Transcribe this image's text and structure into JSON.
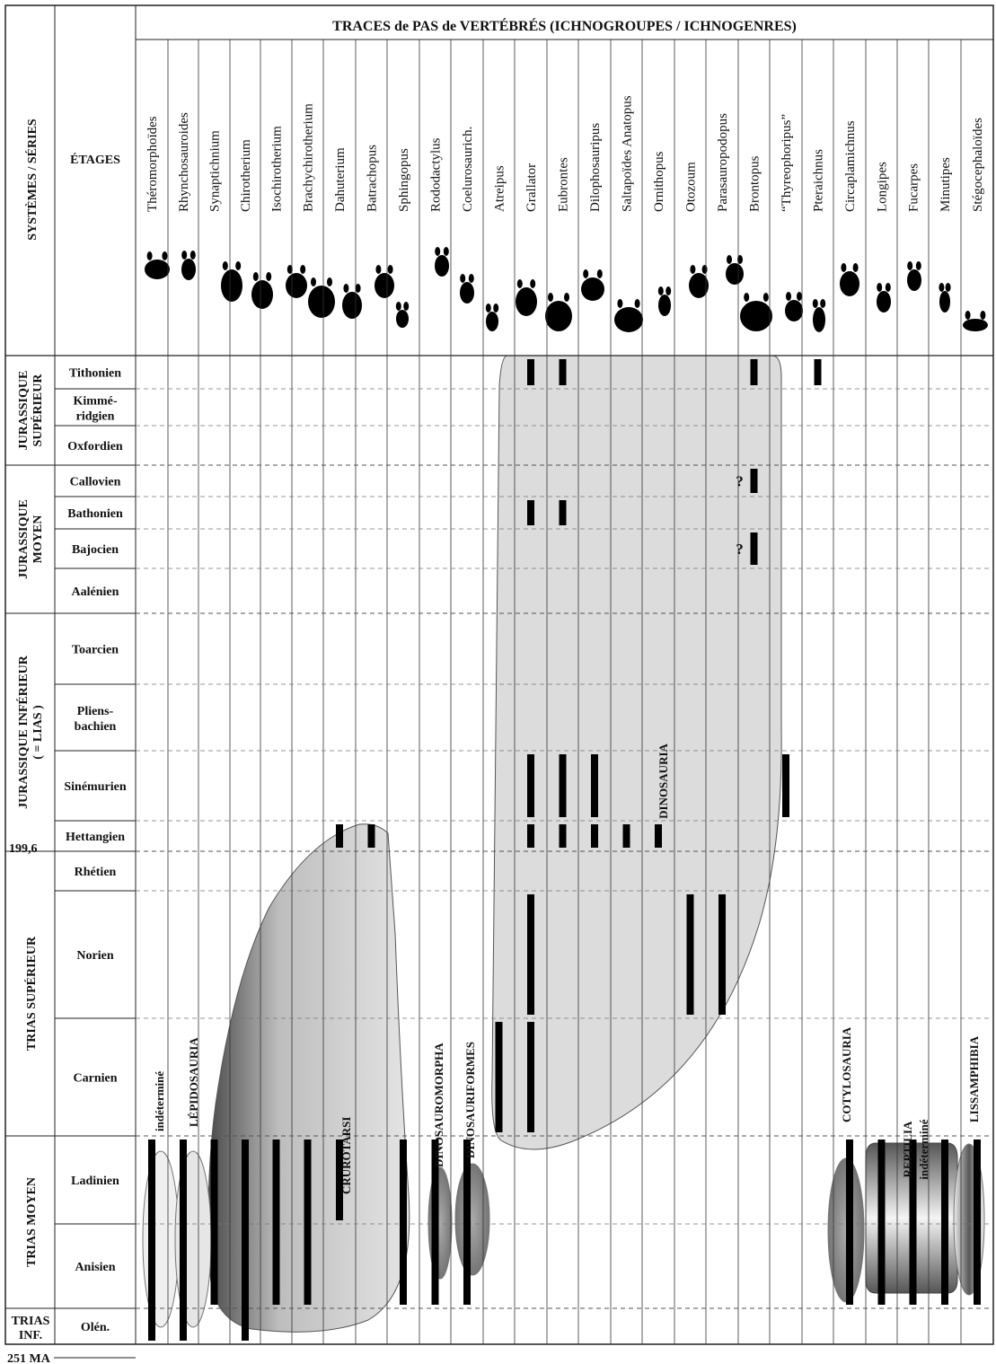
{
  "chart_data": {
    "type": "range",
    "title": "TRACES de PAS de VERTÉBRÉS  (ICHNOGROUPES / ICHNOGENRES)",
    "col_header_systems": "SYSTÈMES  /  SÉRIES",
    "col_header_stages": "ÉTAGES",
    "systems": [
      {
        "name": "JURASSIQUE SUPÉRIEUR",
        "stages": [
          "Tithonien",
          "Kimmé-ridgien",
          "Oxfordien"
        ]
      },
      {
        "name": "JURASSIQUE MOYEN",
        "stages": [
          "Callovien",
          "Bathonien",
          "Bajocien",
          "Aalénien"
        ]
      },
      {
        "name": "JURASSIQUE INFÉRIEUR ( = LIAS )",
        "stages": [
          "Toarcien",
          "Pliens-bachien",
          "Sinémurien",
          "Hettangien"
        ]
      },
      {
        "name": "TRIAS SUPÉRIEUR",
        "stages": [
          "Rhétien",
          "Norien",
          "Carnien"
        ]
      },
      {
        "name": "TRIAS MOYEN",
        "stages": [
          "Ladinien",
          "Anisien"
        ]
      },
      {
        "name": "TRIAS INF.",
        "stages": [
          "Olén."
        ]
      }
    ],
    "stages": [
      "Tithonien",
      "Kimmé-ridgien",
      "Oxfordien",
      "Callovien",
      "Bathonien",
      "Bajocien",
      "Aalénien",
      "Toarcien",
      "Pliens-bachien",
      "Sinémurien",
      "Hettangien",
      "Rhétien",
      "Norien",
      "Carnien",
      "Ladinien",
      "Anisien",
      "Olén."
    ],
    "age_labels": [
      "199,6",
      "251 MA"
    ],
    "ichnogenera": [
      "Théromorphoïdes",
      "Rhynchosauroides",
      "Synaptichnium",
      "Chirotherium",
      "Isochirotherium",
      "Brachychirotherium",
      "Dahuterium",
      "Batrachopus",
      "Sphingopus",
      "Rododactylus",
      "Coelurosaurich.",
      "Atreipus",
      "Grallator",
      "Eubrontes",
      "Dilophosauripus",
      "Saltapoïdes Anatopus",
      "Ornithopus",
      "Otozoum",
      "Parasauropodopus",
      "Brontopus",
      "“Thyreophoripus”",
      "Pteraichnus",
      "Circaplamichnus",
      "Longipes",
      "Fucarpes",
      "Minutipes",
      "Stégocephaloïdes"
    ],
    "ranges": [
      {
        "genus": "Théromorphoïdes",
        "from": "Olén.",
        "to": "Ladinien"
      },
      {
        "genus": "Rhynchosauroides",
        "from": "Olén.",
        "to": "Ladinien"
      },
      {
        "genus": "Synaptichnium",
        "from": "Anisien",
        "to": "Ladinien"
      },
      {
        "genus": "Chirotherium",
        "from": "Olén.",
        "to": "Ladinien"
      },
      {
        "genus": "Isochirotherium",
        "from": "Anisien",
        "to": "Ladinien"
      },
      {
        "genus": "Brachychirotherium",
        "from": "Anisien",
        "to": "Ladinien"
      },
      {
        "genus": "Dahuterium",
        "from": "Ladinien",
        "to": "Ladinien"
      },
      {
        "genus": "Dahuterium",
        "from": "Hettangien",
        "to": "Hettangien"
      },
      {
        "genus": "Batrachopus",
        "from": "Hettangien",
        "to": "Hettangien"
      },
      {
        "genus": "Sphingopus",
        "from": "Anisien",
        "to": "Ladinien"
      },
      {
        "genus": "Rododactylus",
        "from": "Anisien",
        "to": "Ladinien"
      },
      {
        "genus": "Coelurosaurich.",
        "from": "Anisien",
        "to": "Ladinien"
      },
      {
        "genus": "Atreipus",
        "from": "Carnien",
        "to": "Carnien"
      },
      {
        "genus": "Grallator",
        "from": "Carnien",
        "to": "Carnien"
      },
      {
        "genus": "Grallator",
        "from": "Norien",
        "to": "Norien"
      },
      {
        "genus": "Grallator",
        "from": "Hettangien",
        "to": "Hettangien"
      },
      {
        "genus": "Grallator",
        "from": "Sinémurien",
        "to": "Sinémurien"
      },
      {
        "genus": "Grallator",
        "from": "Bathonien",
        "to": "Bathonien"
      },
      {
        "genus": "Grallator",
        "from": "Tithonien",
        "to": "Tithonien"
      },
      {
        "genus": "Eubrontes",
        "from": "Hettangien",
        "to": "Hettangien"
      },
      {
        "genus": "Eubrontes",
        "from": "Sinémurien",
        "to": "Sinémurien"
      },
      {
        "genus": "Eubrontes",
        "from": "Bathonien",
        "to": "Bathonien"
      },
      {
        "genus": "Eubrontes",
        "from": "Tithonien",
        "to": "Tithonien"
      },
      {
        "genus": "Dilophosauripus",
        "from": "Hettangien",
        "to": "Hettangien"
      },
      {
        "genus": "Dilophosauripus",
        "from": "Sinémurien",
        "to": "Sinémurien"
      },
      {
        "genus": "Saltapoïdes Anatopus",
        "from": "Hettangien",
        "to": "Hettangien"
      },
      {
        "genus": "Ornithopus",
        "from": "Hettangien",
        "to": "Hettangien"
      },
      {
        "genus": "Otozoum",
        "from": "Norien",
        "to": "Norien"
      },
      {
        "genus": "Parasauropodopus",
        "from": "Norien",
        "to": "Norien"
      },
      {
        "genus": "Brontopus",
        "from": "Bajocien",
        "to": "Bajocien",
        "uncertain": true
      },
      {
        "genus": "Brontopus",
        "from": "Callovien",
        "to": "Callovien",
        "uncertain": true
      },
      {
        "genus": "Brontopus",
        "from": "Tithonien",
        "to": "Tithonien"
      },
      {
        "genus": "“Thyreophoripus”",
        "from": "Sinémurien",
        "to": "Sinémurien"
      },
      {
        "genus": "Pteraichnus",
        "from": "Tithonien",
        "to": "Tithonien"
      },
      {
        "genus": "Circaplamichnus",
        "from": "Anisien",
        "to": "Ladinien"
      },
      {
        "genus": "Longipes",
        "from": "Anisien",
        "to": "Ladinien"
      },
      {
        "genus": "Fucarpes",
        "from": "Anisien",
        "to": "Ladinien"
      },
      {
        "genus": "Minutipes",
        "from": "Anisien",
        "to": "Ladinien"
      },
      {
        "genus": "Stégocephaloïdes",
        "from": "Anisien",
        "to": "Ladinien"
      }
    ],
    "groups": [
      "indéterminé",
      "LÉPIDOSAURIA",
      "CRUROTARSI",
      "DINOSAUROMORPHA",
      "DINOSAURIFORMES",
      "DINOSAURIA",
      "COTYLOSAURIA",
      "REPTILIA",
      "indéterminé",
      "LISSAMPHIBIA"
    ],
    "uncertain_marker": "?"
  }
}
